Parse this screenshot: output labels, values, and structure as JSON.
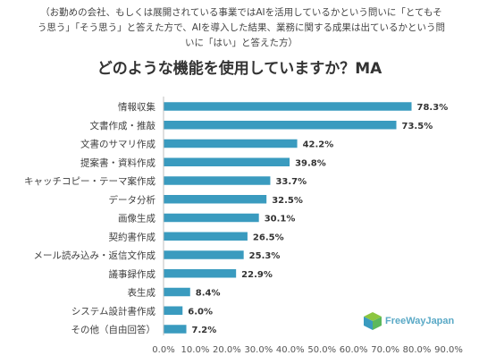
{
  "chart_data": {
    "type": "bar",
    "orientation": "horizontal",
    "subtitle": "（お勤めの会社、もしくは展開されている事業ではAIを活用しているかという問いに「とてもそう思う」「そう思う」と答えた方で、AIを導入した結果、業務に関する成果は出ているかという問いに「はい」と答えた方）",
    "title": "どのような機能を使用していますか？MA",
    "categories": [
      "情報収集",
      "文書作成・推敲",
      "文書のサマリ作成",
      "提案書・資料作成",
      "キャッチコピー・テーマ案作成",
      "データ分析",
      "画像生成",
      "契約書作成",
      "メール読み込み・返信文作成",
      "議事録作成",
      "表生成",
      "システム設計書作成",
      "その他（自由回答）"
    ],
    "values": [
      78.3,
      73.5,
      42.2,
      39.8,
      33.7,
      32.5,
      30.1,
      26.5,
      25.3,
      22.9,
      8.4,
      6.0,
      7.2
    ],
    "value_labels": [
      "78.3%",
      "73.5%",
      "42.2%",
      "39.8%",
      "33.7%",
      "32.5%",
      "30.1%",
      "26.5%",
      "25.3%",
      "22.9%",
      "8.4%",
      "6.0%",
      "7.2%"
    ],
    "x_ticks": [
      "0.0%",
      "10.0%",
      "20.0%",
      "30.0%",
      "40.0%",
      "50.0%",
      "60.0%",
      "70.0%",
      "80.0%",
      "90.0%"
    ],
    "xlim": [
      0,
      90
    ],
    "grid": false,
    "bar_color": "#3a9bbf"
  },
  "logo": {
    "name": "cube-logo-icon",
    "text": "FreeWayJapan"
  }
}
